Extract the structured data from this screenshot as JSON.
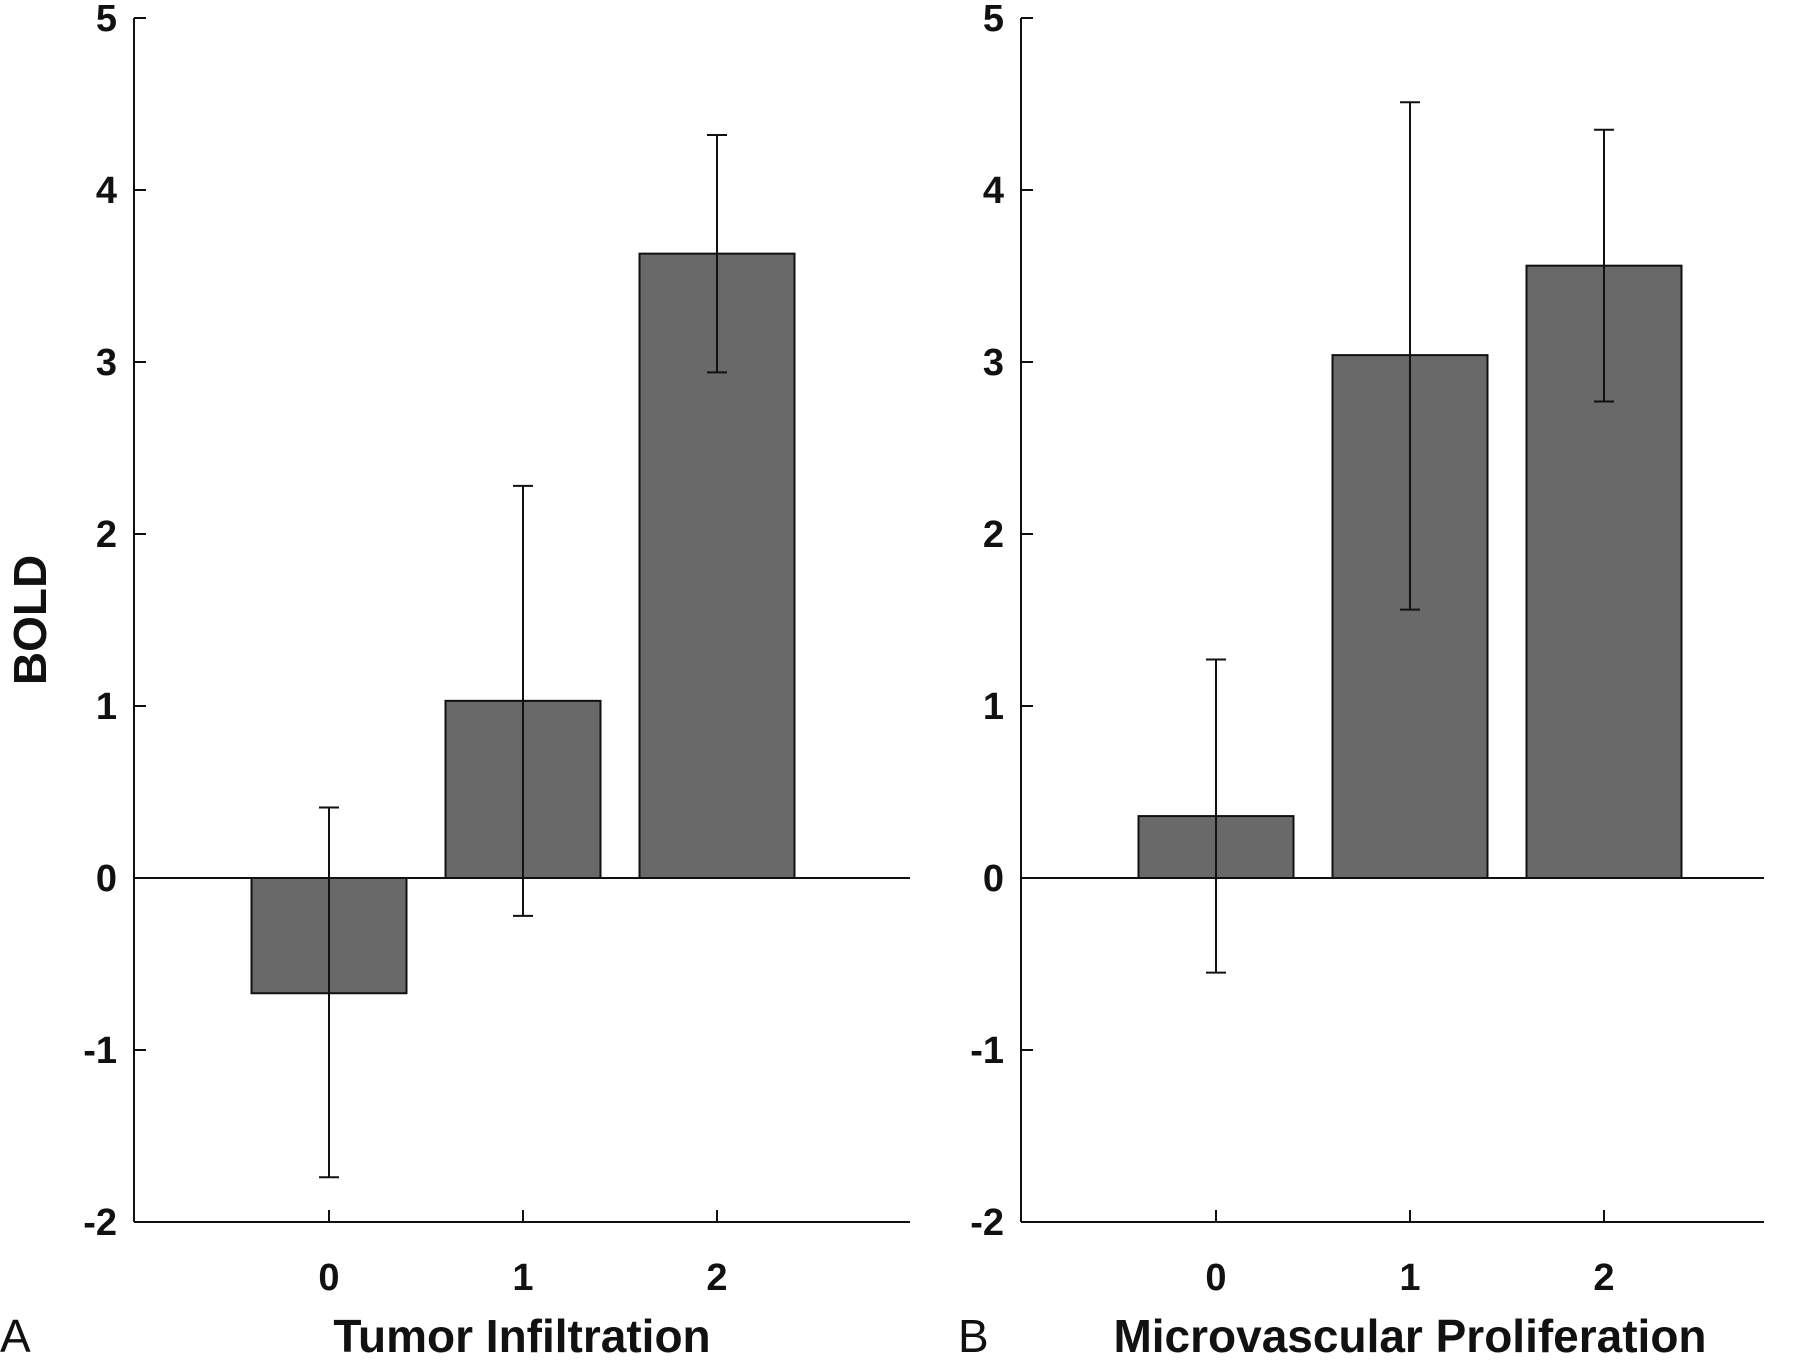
{
  "chart_data": [
    {
      "type": "bar",
      "panel_letter": "A",
      "xlabel": "Tumor Infiltration",
      "ylabel": "BOLD",
      "categories": [
        "0",
        "1",
        "2"
      ],
      "values": [
        -0.67,
        1.03,
        3.63
      ],
      "error_low": [
        -1.74,
        -0.22,
        2.94
      ],
      "error_high": [
        0.41,
        2.28,
        4.32
      ],
      "ylim": [
        -2,
        5
      ],
      "yticks": [
        "-2",
        "-1",
        "0",
        "1",
        "2",
        "3",
        "4",
        "5"
      ],
      "grid": false,
      "bar_color": "#696969"
    },
    {
      "type": "bar",
      "panel_letter": "B",
      "xlabel": "Microvascular Proliferation",
      "ylabel": "",
      "categories": [
        "0",
        "1",
        "2"
      ],
      "values": [
        0.36,
        3.04,
        3.56
      ],
      "error_low": [
        -0.55,
        1.56,
        2.77
      ],
      "error_high": [
        1.27,
        4.51,
        4.35
      ],
      "ylim": [
        -2,
        5
      ],
      "yticks": [
        "-2",
        "-1",
        "0",
        "1",
        "2",
        "3",
        "4",
        "5"
      ],
      "grid": false,
      "bar_color": "#696969"
    }
  ]
}
